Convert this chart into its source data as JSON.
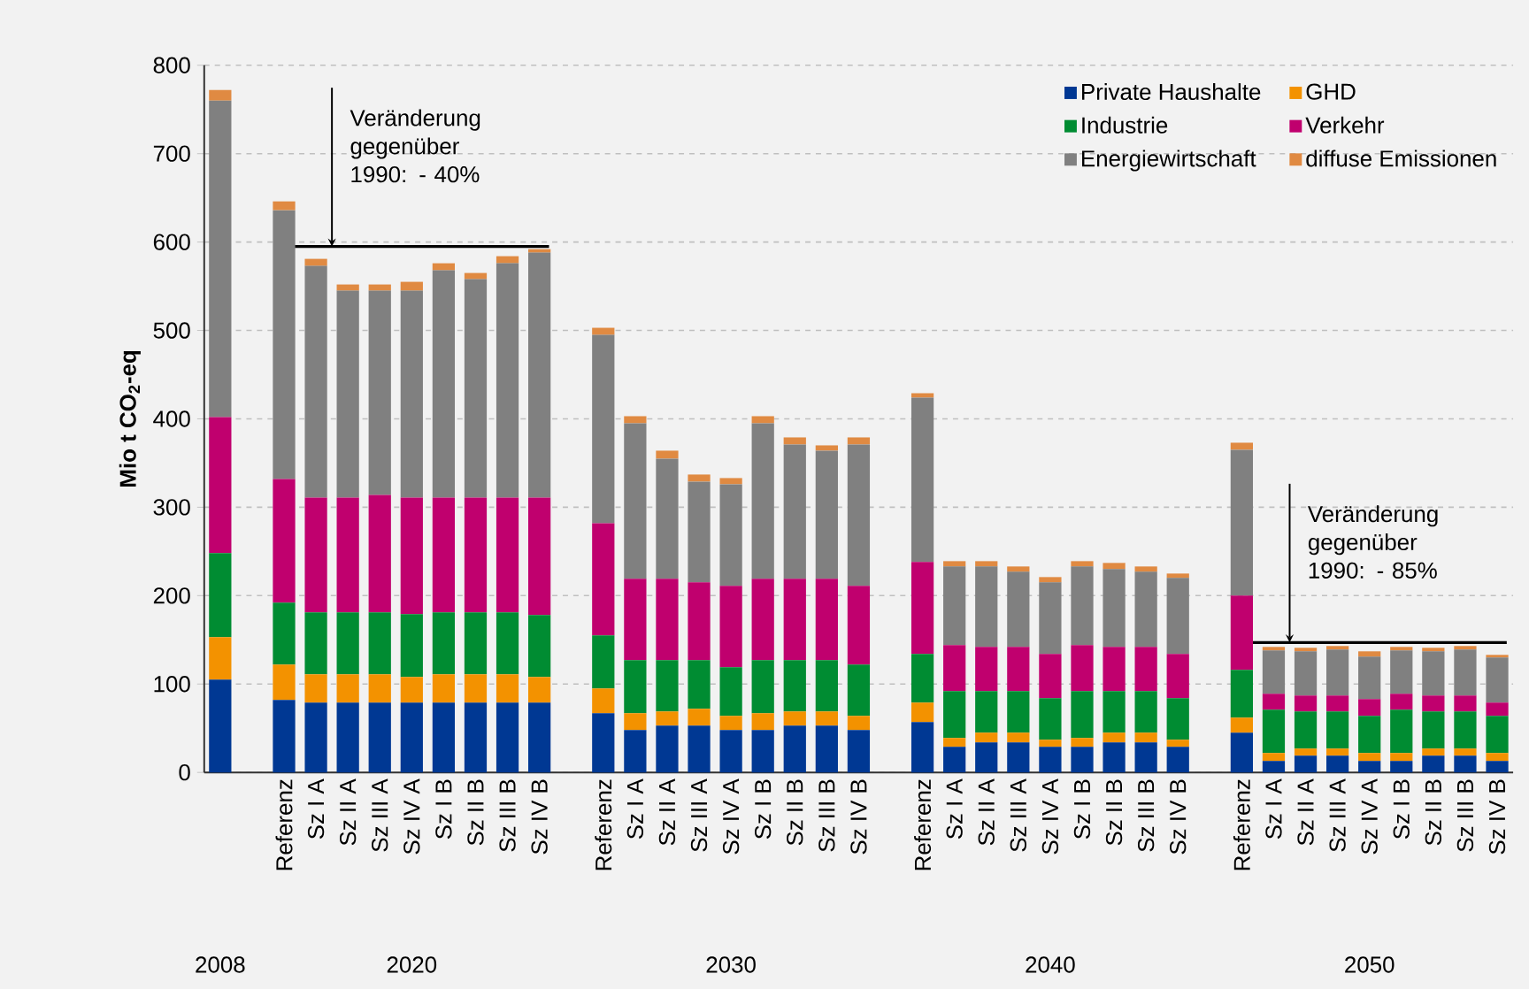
{
  "chart_data": {
    "type": "bar",
    "stacked": true,
    "ylabel": "Mio t CO$_{2}$-eq",
    "categories": [
      null,
      null,
      "Referenz",
      "Sz I A",
      "Sz II A",
      "Sz III A",
      "Sz IV A",
      "Sz I B",
      "Sz II B",
      "Sz III B",
      "Sz IV B",
      null,
      "Referenz",
      "Sz I A",
      "Sz II A",
      "Sz III A",
      "Sz IV A",
      "Sz I B",
      "Sz II B",
      "Sz III B",
      "Sz IV B",
      null,
      "Referenz",
      "Sz I A",
      "Sz II A",
      "Sz III A",
      "Sz IV A",
      "Sz I B",
      "Sz II B",
      "Sz III B",
      "Sz IV B",
      null,
      "Referenz",
      "Sz I A",
      "Sz II A",
      "Sz III A",
      "Sz IV A",
      "Sz I B",
      "Sz II B",
      "Sz III B",
      "Sz IV B"
    ],
    "series": [
      {
        "name": "Private Haushalte",
        "color": "#003893",
        "values": [
          105,
          null,
          82,
          79,
          79,
          79,
          79,
          79,
          79,
          79,
          79,
          null,
          67,
          48,
          53,
          53,
          48,
          48,
          53,
          53,
          48,
          null,
          57,
          29,
          34,
          34,
          29,
          29,
          34,
          34,
          29,
          null,
          45,
          13,
          19,
          19,
          13,
          13,
          19,
          19,
          13
        ]
      },
      {
        "name": "GHD",
        "color": "#f39200",
        "values": [
          48,
          null,
          40,
          32,
          32,
          32,
          29,
          32,
          32,
          32,
          29,
          null,
          28,
          19,
          16,
          19,
          16,
          19,
          16,
          16,
          16,
          null,
          22,
          10,
          11,
          11,
          8,
          10,
          11,
          11,
          8,
          null,
          17,
          9,
          8,
          8,
          9,
          9,
          8,
          8,
          9
        ]
      },
      {
        "name": "Industrie",
        "color": "#008c32",
        "values": [
          95,
          null,
          70,
          70,
          70,
          70,
          71,
          70,
          70,
          70,
          70,
          null,
          60,
          60,
          58,
          55,
          55,
          60,
          58,
          58,
          58,
          null,
          55,
          53,
          47,
          47,
          47,
          53,
          47,
          47,
          47,
          null,
          54,
          49,
          42,
          42,
          42,
          49,
          42,
          42,
          42
        ]
      },
      {
        "name": "Verkehr",
        "color": "#c0006e",
        "values": [
          154,
          null,
          140,
          130,
          130,
          133,
          132,
          130,
          130,
          130,
          133,
          null,
          127,
          92,
          92,
          88,
          92,
          92,
          92,
          92,
          89,
          null,
          104,
          52,
          50,
          50,
          50,
          52,
          50,
          50,
          50,
          null,
          84,
          18,
          18,
          18,
          19,
          18,
          18,
          18,
          15
        ]
      },
      {
        "name": "Energiewirtschaft",
        "color": "#808080",
        "values": [
          358,
          null,
          304,
          262,
          234,
          231,
          234,
          257,
          247,
          265,
          277,
          null,
          213,
          176,
          136,
          114,
          115,
          176,
          152,
          145,
          160,
          null,
          186,
          89,
          91,
          85,
          81,
          89,
          88,
          85,
          86,
          null,
          165,
          49,
          50,
          52,
          48,
          49,
          50,
          52,
          51
        ]
      },
      {
        "name": "diffuse Emissionen",
        "color": "#e08a42",
        "values": [
          12,
          null,
          10,
          8,
          7,
          7,
          10,
          8,
          7,
          8,
          4,
          null,
          8,
          8,
          9,
          8,
          7,
          8,
          8,
          6,
          8,
          null,
          5,
          6,
          6,
          6,
          6,
          6,
          7,
          6,
          5,
          null,
          8,
          4,
          4,
          4,
          6,
          4,
          4,
          4,
          3
        ]
      }
    ],
    "ylim": [
      0,
      800
    ],
    "yticks": [
      0,
      100,
      200,
      300,
      400,
      500,
      600,
      700,
      800
    ],
    "grid": "y",
    "legend": "top right",
    "ref_lines": [
      {
        "axis": "y",
        "value": 595,
        "label": "Veränderung gegenüber 1990: - 40%"
      },
      {
        "axis": "y",
        "value": 147,
        "label": "Veränderung gegenüber 1990: - 85%"
      }
    ],
    "annotations": [
      "2008",
      "2020",
      "2030",
      "2040",
      "2050"
    ]
  }
}
